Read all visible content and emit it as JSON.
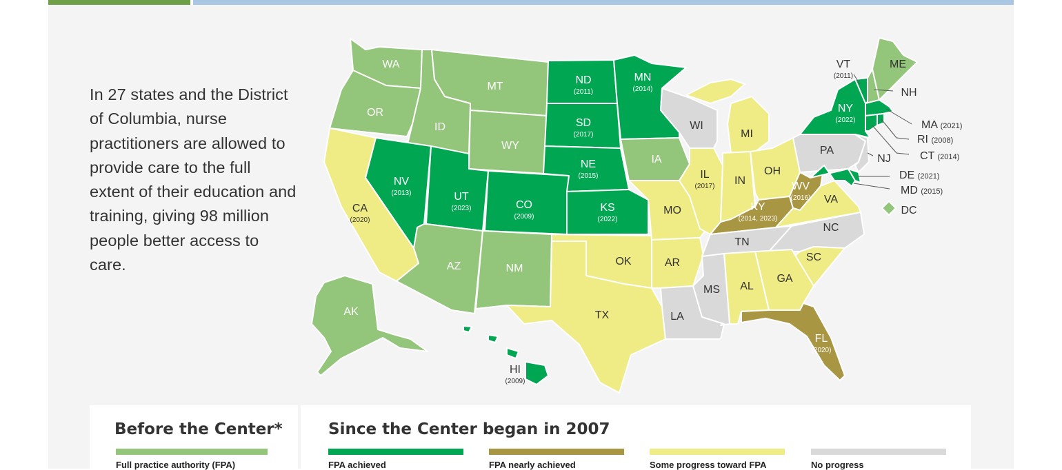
{
  "intro_text": "In 27 states and the District of Columbia, nurse practitioners are allowed to provide care to the full extent of their education and training, giving 98 million people better access to care.",
  "colors": {
    "fpa_before": "#93c57a",
    "fpa_achieved": "#00a651",
    "nearly": "#a99642",
    "some": "#efeb85",
    "none": "#d9d9d9",
    "border": "#ffffff"
  },
  "states": {
    "WA": {
      "label": "WA",
      "year": "",
      "status": "fpa_before"
    },
    "OR": {
      "label": "OR",
      "year": "",
      "status": "fpa_before"
    },
    "ID": {
      "label": "ID",
      "year": "",
      "status": "fpa_before"
    },
    "MT": {
      "label": "MT",
      "year": "",
      "status": "fpa_before"
    },
    "WY": {
      "label": "WY",
      "year": "",
      "status": "fpa_before"
    },
    "AZ": {
      "label": "AZ",
      "year": "",
      "status": "fpa_before"
    },
    "NM": {
      "label": "NM",
      "year": "",
      "status": "fpa_before"
    },
    "IA": {
      "label": "IA",
      "year": "",
      "status": "fpa_before"
    },
    "AK": {
      "label": "AK",
      "year": "",
      "status": "fpa_before"
    },
    "ME": {
      "label": "ME",
      "year": "",
      "status": "fpa_before"
    },
    "NH": {
      "label": "NH",
      "year": "",
      "status": "fpa_before"
    },
    "ND": {
      "label": "ND",
      "year": "(2011)",
      "status": "fpa_achieved"
    },
    "SD": {
      "label": "SD",
      "year": "(2017)",
      "status": "fpa_achieved"
    },
    "MN": {
      "label": "MN",
      "year": "(2014)",
      "status": "fpa_achieved"
    },
    "NE": {
      "label": "NE",
      "year": "(2015)",
      "status": "fpa_achieved"
    },
    "KS": {
      "label": "KS",
      "year": "(2022)",
      "status": "fpa_achieved"
    },
    "CO": {
      "label": "CO",
      "year": "(2009)",
      "status": "fpa_achieved"
    },
    "UT": {
      "label": "UT",
      "year": "(2023)",
      "status": "fpa_achieved"
    },
    "NV": {
      "label": "NV",
      "year": "(2013)",
      "status": "fpa_achieved"
    },
    "HI": {
      "label": "HI",
      "year": "(2009)",
      "status": "fpa_achieved"
    },
    "NY": {
      "label": "NY",
      "year": "(2022)",
      "status": "fpa_achieved"
    },
    "VT": {
      "label": "VT",
      "year": "(2011)",
      "status": "fpa_achieved"
    },
    "MA": {
      "label": "MA",
      "year": "(2021)",
      "status": "fpa_achieved"
    },
    "RI": {
      "label": "RI",
      "year": "(2008)",
      "status": "fpa_achieved"
    },
    "CT": {
      "label": "CT",
      "year": "(2014)",
      "status": "fpa_achieved"
    },
    "DE": {
      "label": "DE",
      "year": "(2021)",
      "status": "fpa_achieved"
    },
    "MD": {
      "label": "MD",
      "year": "(2015)",
      "status": "fpa_achieved"
    },
    "DC": {
      "label": "DC",
      "year": "",
      "status": "fpa_before"
    },
    "KY": {
      "label": "KY",
      "year": "(2014, 2023)",
      "status": "nearly"
    },
    "WV": {
      "label": "WV",
      "year": "(2016)",
      "status": "nearly"
    },
    "FL": {
      "label": "FL",
      "year": "(2020)",
      "status": "nearly"
    },
    "CA": {
      "label": "CA",
      "year": "(2020)",
      "status": "some"
    },
    "MI": {
      "label": "MI",
      "year": "",
      "status": "some"
    },
    "IL": {
      "label": "IL",
      "year": "(2017)",
      "status": "some"
    },
    "IN": {
      "label": "IN",
      "year": "",
      "status": "some"
    },
    "OH": {
      "label": "OH",
      "year": "",
      "status": "some"
    },
    "MO": {
      "label": "MO",
      "year": "",
      "status": "some"
    },
    "VA": {
      "label": "VA",
      "year": "",
      "status": "some"
    },
    "OK": {
      "label": "OK",
      "year": "",
      "status": "some"
    },
    "AR": {
      "label": "AR",
      "year": "",
      "status": "some"
    },
    "TX": {
      "label": "TX",
      "year": "",
      "status": "some"
    },
    "AL": {
      "label": "AL",
      "year": "",
      "status": "some"
    },
    "GA": {
      "label": "GA",
      "year": "",
      "status": "some"
    },
    "SC": {
      "label": "SC",
      "year": "",
      "status": "some"
    },
    "WI": {
      "label": "WI",
      "year": "",
      "status": "none"
    },
    "PA": {
      "label": "PA",
      "year": "",
      "status": "none"
    },
    "NJ": {
      "label": "NJ",
      "year": "",
      "status": "none"
    },
    "TN": {
      "label": "TN",
      "year": "",
      "status": "none"
    },
    "NC": {
      "label": "NC",
      "year": "",
      "status": "none"
    },
    "MS": {
      "label": "MS",
      "year": "",
      "status": "none"
    },
    "LA": {
      "label": "LA",
      "year": "",
      "status": "none"
    }
  },
  "legend": {
    "before_title": "Before the Center*",
    "since_title": "Since the Center began in 2007",
    "items": [
      {
        "label": "Full practice authority (FPA)",
        "color": "#93c57a"
      },
      {
        "label": "FPA achieved",
        "color": "#00a651"
      },
      {
        "label": "FPA nearly achieved",
        "color": "#a99642"
      },
      {
        "label": "Some progress toward FPA",
        "color": "#efeb85"
      },
      {
        "label": "No progress",
        "color": "#d9d9d9"
      }
    ]
  }
}
